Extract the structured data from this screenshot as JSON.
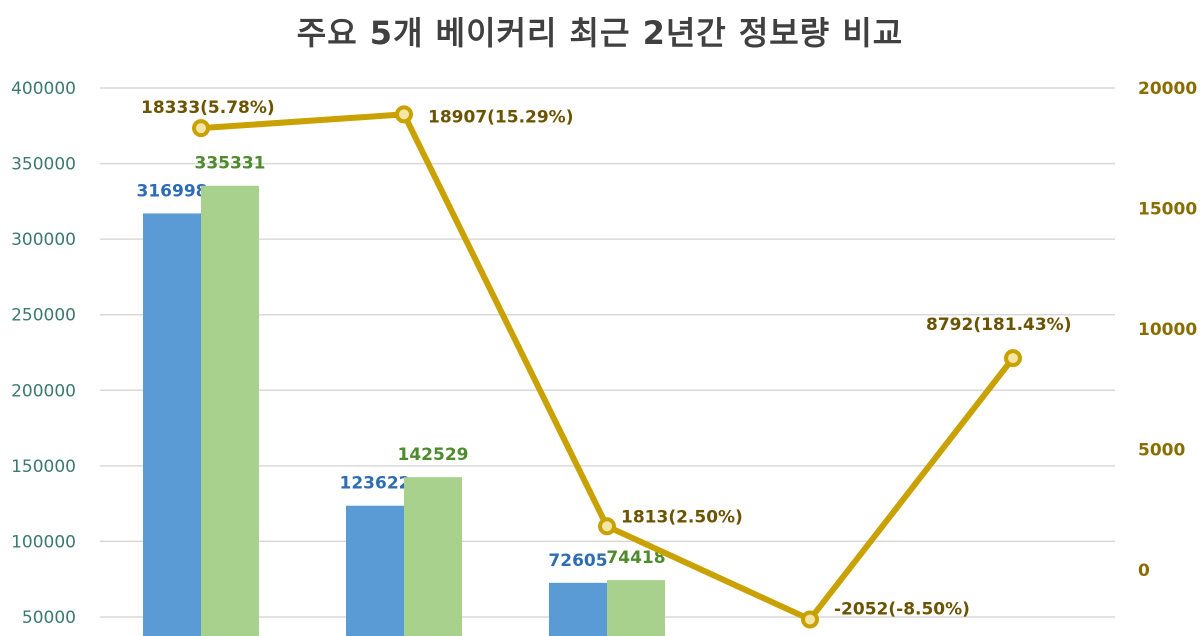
{
  "chart_data": {
    "type": "bar",
    "title": "주요 5개 베이커리 최근 2년간 정보량 비교",
    "categories": [
      "",
      "",
      "",
      "",
      ""
    ],
    "series": [
      {
        "type": "bar",
        "axis": "left",
        "color": "#5b9bd5",
        "values": [
          316998,
          123622,
          72605,
          null,
          null
        ]
      },
      {
        "type": "bar",
        "axis": "left",
        "color": "#a9d18e",
        "values": [
          335331,
          142529,
          74418,
          null,
          null
        ]
      },
      {
        "type": "line",
        "axis": "right",
        "color": "#c9a100",
        "values": [
          18333,
          18907,
          1813,
          -2052,
          8792
        ],
        "labels": [
          "18333(5.78%)",
          "18907(15.29%)",
          "1813(2.50%)",
          "-2052(-8.50%)",
          "8792(181.43%)"
        ]
      }
    ],
    "y_left": {
      "ticks": [
        50000,
        100000,
        150000,
        200000,
        250000,
        300000,
        350000,
        400000
      ]
    },
    "y_right": {
      "ticks": [
        0,
        5000,
        10000,
        15000,
        20000
      ]
    },
    "grid": true
  }
}
